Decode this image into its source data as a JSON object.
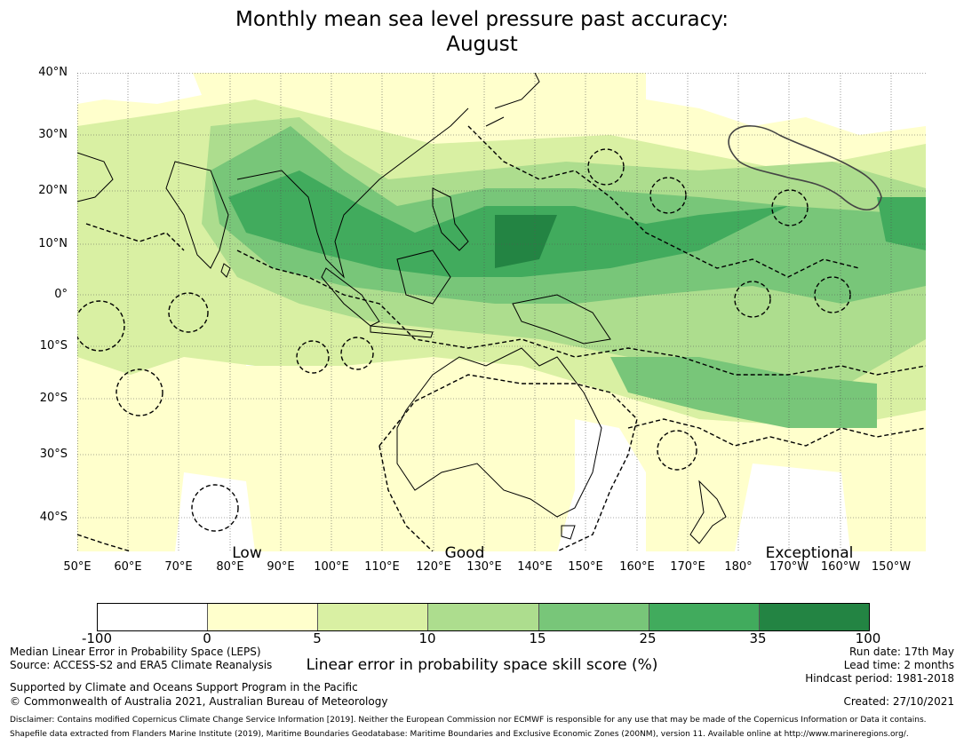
{
  "title_line1": "Monthly mean sea level pressure past accuracy:",
  "title_line2": "August",
  "lat_labels": [
    "40°N",
    "30°N",
    "20°N",
    "10°N",
    "0°",
    "10°S",
    "20°S",
    "30°S",
    "40°S"
  ],
  "lon_labels": [
    "50°E",
    "60°E",
    "70°E",
    "80°E",
    "90°E",
    "100°E",
    "110°E",
    "120°E",
    "130°E",
    "140°E",
    "150°E",
    "160°E",
    "170°E",
    "180°",
    "170°W",
    "160°W",
    "150°W"
  ],
  "categories": {
    "low": "Low",
    "good": "Good",
    "exceptional": "Exceptional"
  },
  "colorbar": {
    "colors": [
      "#ffffff",
      "#ffffcc",
      "#d9f0a3",
      "#addd8e",
      "#78c679",
      "#41ab5d",
      "#238443"
    ],
    "ticks": [
      "-100",
      "0",
      "5",
      "10",
      "15",
      "25",
      "35",
      "100"
    ],
    "label": "Linear error in probability space skill score (%)"
  },
  "footer": {
    "left1": "Median Linear Error in Probability Space (LEPS)",
    "left2": "Source: ACCESS-S2 and ERA5 Climate Reanalysis",
    "left3": "Supported by Climate and Oceans Support Program in the Pacific",
    "left4": "© Commonwealth of Australia 2021, Australian Bureau of Meteorology",
    "right1": "Run date: 17th May",
    "right2": "Lead time: 2 months",
    "right3": "Hindcast period: 1981-2018",
    "right4": "Created: 27/10/2021",
    "disclaimer": "Disclaimer: Contains modified Copernicus Climate Change Service Information [2019]. Neither the European Commission nor ECMWF is responsible for any use that may be made of the Copernicus Information or Data it contains.",
    "shapefile": "Shapefile data extracted from Flanders Marine Institute (2019), Maritime Boundaries Geodatabase: Maritime Boundaries and Exclusive Economic Zones (200NM), version 11. Available online at http://www.marineregions.org/."
  }
}
